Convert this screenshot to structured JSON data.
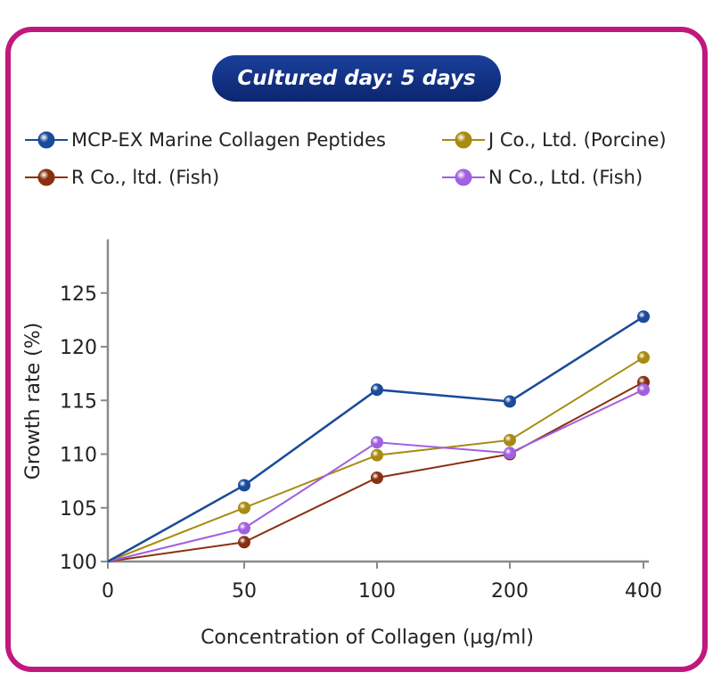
{
  "badge": {
    "text": "Cultured day: 5 days"
  },
  "chart_data": {
    "type": "line",
    "categories": [
      "0",
      "50",
      "100",
      "200",
      "400"
    ],
    "xlabel": "Concentration of Collagen (µg/ml)",
    "ylabel": "Growth rate (%)",
    "ylim": [
      100,
      130
    ],
    "yticks": [
      100,
      105,
      110,
      115,
      120,
      125
    ],
    "legend_position": "top",
    "series": [
      {
        "name": "MCP-EX Marine Collagen Peptides",
        "color": "#1a4a9a",
        "values": [
          100,
          107.1,
          116.0,
          114.9,
          122.8
        ]
      },
      {
        "name": "J Co., Ltd. (Porcine)",
        "color": "#a88a10",
        "values": [
          100,
          105.0,
          109.9,
          111.3,
          119.0
        ]
      },
      {
        "name": "R Co., ltd. (Fish)",
        "color": "#8a3010",
        "values": [
          100,
          101.8,
          107.8,
          110.0,
          116.7
        ]
      },
      {
        "name": "N Co., Ltd. (Fish)",
        "color": "#a060e0",
        "values": [
          100,
          103.1,
          111.1,
          110.1,
          116.0
        ]
      }
    ]
  }
}
